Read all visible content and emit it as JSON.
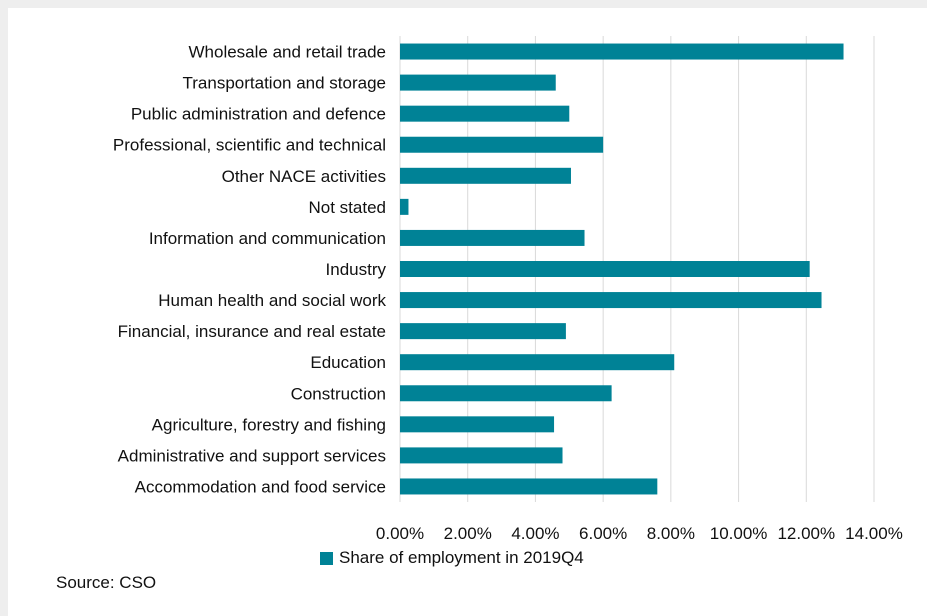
{
  "chart_data": {
    "type": "bar",
    "orientation": "horizontal",
    "categories": [
      "Wholesale and retail trade",
      "Transportation and storage",
      "Public administration and defence",
      "Professional, scientific and technical",
      "Other NACE activities",
      "Not stated",
      "Information and communication",
      "Industry",
      "Human health and social work",
      "Financial, insurance and real estate",
      "Education",
      "Construction",
      "Agriculture, forestry and fishing",
      "Administrative and support services",
      "Accommodation and food service"
    ],
    "series": [
      {
        "name": "Share of employment in 2019Q4",
        "values": [
          13.1,
          4.6,
          5.0,
          6.0,
          5.05,
          0.25,
          5.45,
          12.1,
          12.45,
          4.9,
          8.1,
          6.25,
          4.55,
          4.8,
          7.6
        ]
      }
    ],
    "xlim": [
      0,
      14
    ],
    "xticks": [
      0,
      2,
      4,
      6,
      8,
      10,
      12,
      14
    ],
    "tick_labels": [
      "0.00%",
      "2.00%",
      "4.00%",
      "6.00%",
      "8.00%",
      "10.00%",
      "12.00%",
      "14.00%"
    ],
    "grid": "vertical",
    "legend_position": "bottom",
    "bar_color": "#008296",
    "grid_color": "#d9d9d9"
  },
  "legend": {
    "label": "Share of employment in 2019Q4"
  },
  "source": "Source: CSO"
}
